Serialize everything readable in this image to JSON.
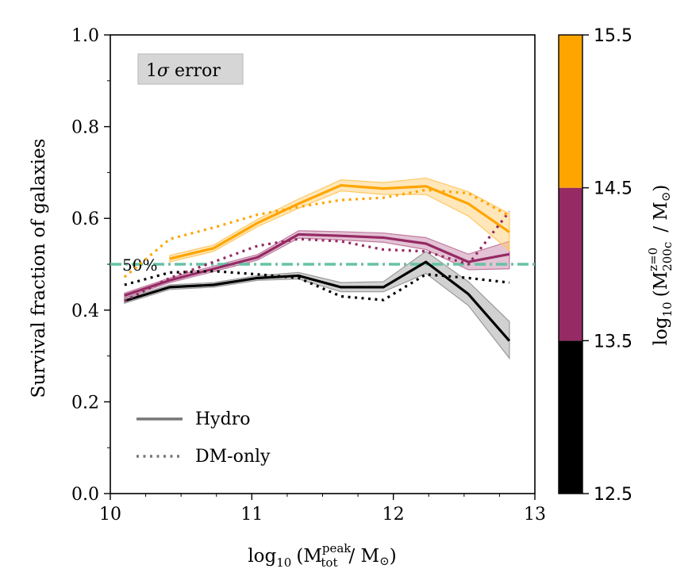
{
  "chart_data": {
    "type": "line",
    "title": "",
    "xlabel": "log10 (M_tot^peak / M_sun)",
    "ylabel": "Survival fraction of galaxies",
    "xlabel_parts": {
      "lead": "log",
      "sub": "10",
      "open": "(M",
      "sup": "peak",
      "subscript": "tot",
      "close": "/ M",
      "sun": "⊙",
      "end": ")"
    },
    "xlim": [
      10,
      13
    ],
    "ylim": [
      0.0,
      1.0
    ],
    "xticks": [
      "10",
      "11",
      "12",
      "13"
    ],
    "yticks": [
      "0.0",
      "0.2",
      "0.4",
      "0.6",
      "0.8",
      "1.0"
    ],
    "grid": false,
    "reference_line": {
      "y": 0.5,
      "label": "50%",
      "color": "#66c2a5",
      "style": "dash-dot"
    },
    "error_band_label": "1σ error",
    "error_band_sigma": "σ",
    "error_band_prefix": "1",
    "error_band_suffix": " error",
    "legend": [
      {
        "label": "Hydro",
        "style": "solid"
      },
      {
        "label": "DM-only",
        "style": "dotted"
      }
    ],
    "colorbar": {
      "label": "log10 (M_200c^{z=0} / M_sun)",
      "label_parts": {
        "lead": "log",
        "sub": "10",
        "open": "(M",
        "sup": "z=0",
        "subscript": "200c",
        "close": "/ M",
        "sun": "⊙",
        "end": ")"
      },
      "ticks": [
        "12.5",
        "13.5",
        "14.5",
        "15.5"
      ],
      "bins": [
        {
          "range": [
            12.5,
            13.5
          ],
          "color": "#000000"
        },
        {
          "range": [
            13.5,
            14.5
          ],
          "color": "#952a64"
        },
        {
          "range": [
            14.5,
            15.5
          ],
          "color": "#ffa500"
        }
      ]
    },
    "series": [
      {
        "name": "Hydro 12.5-13.5",
        "style": "solid",
        "color": "#000000",
        "band_color": "#999999",
        "x": [
          10.1,
          10.42,
          10.73,
          11.04,
          11.33,
          11.63,
          11.93,
          12.23,
          12.53,
          12.82
        ],
        "y": [
          0.42,
          0.45,
          0.455,
          0.47,
          0.475,
          0.45,
          0.45,
          0.505,
          0.435,
          0.333
        ],
        "lo": [
          0.415,
          0.445,
          0.45,
          0.465,
          0.468,
          0.44,
          0.44,
          0.48,
          0.41,
          0.295
        ],
        "hi": [
          0.425,
          0.455,
          0.46,
          0.475,
          0.482,
          0.46,
          0.462,
          0.528,
          0.462,
          0.375
        ]
      },
      {
        "name": "Hydro 13.5-14.5",
        "style": "solid",
        "color": "#952a64",
        "band_color": "#c07aa0",
        "x": [
          10.1,
          10.42,
          10.73,
          11.04,
          11.33,
          11.63,
          11.93,
          12.23,
          12.53,
          12.82
        ],
        "y": [
          0.432,
          0.465,
          0.49,
          0.515,
          0.565,
          0.562,
          0.558,
          0.545,
          0.505,
          0.522
        ],
        "lo": [
          0.427,
          0.46,
          0.484,
          0.509,
          0.557,
          0.553,
          0.548,
          0.532,
          0.488,
          0.49
        ],
        "hi": [
          0.437,
          0.47,
          0.496,
          0.521,
          0.573,
          0.571,
          0.568,
          0.558,
          0.522,
          0.55
        ]
      },
      {
        "name": "Hydro 14.5-15.5",
        "style": "solid",
        "color": "#ffa500",
        "band_color": "#ffc966",
        "x": [
          10.42,
          10.73,
          11.04,
          11.33,
          11.63,
          11.93,
          12.23,
          12.53,
          12.82
        ],
        "y": [
          0.512,
          0.535,
          0.59,
          0.632,
          0.672,
          0.665,
          0.67,
          0.632,
          0.57
        ],
        "lo": [
          0.505,
          0.528,
          0.582,
          0.622,
          0.66,
          0.652,
          0.652,
          0.605,
          0.53
        ],
        "hi": [
          0.519,
          0.542,
          0.598,
          0.642,
          0.684,
          0.678,
          0.688,
          0.658,
          0.61
        ]
      },
      {
        "name": "DM-only 12.5-13.5",
        "style": "dotted",
        "color": "#000000",
        "x": [
          10.1,
          10.42,
          10.73,
          11.04,
          11.33,
          11.63,
          11.93,
          12.23,
          12.53,
          12.82
        ],
        "y": [
          0.455,
          0.482,
          0.485,
          0.478,
          0.47,
          0.43,
          0.422,
          0.478,
          0.47,
          0.46
        ]
      },
      {
        "name": "DM-only 13.5-14.5",
        "style": "dotted",
        "color": "#952a64",
        "x": [
          10.1,
          10.42,
          10.73,
          11.04,
          11.33,
          11.63,
          11.93,
          12.23,
          12.53,
          12.82
        ],
        "y": [
          0.42,
          0.47,
          0.505,
          0.54,
          0.555,
          0.55,
          0.532,
          0.528,
          0.5,
          0.615
        ]
      },
      {
        "name": "DM-only 14.5-15.5",
        "style": "dotted",
        "color": "#ffa500",
        "x": [
          10.1,
          10.42,
          10.73,
          11.04,
          11.33,
          11.63,
          11.93,
          12.23,
          12.53,
          12.82
        ],
        "y": [
          0.472,
          0.555,
          0.58,
          0.608,
          0.625,
          0.64,
          0.645,
          0.662,
          0.655,
          0.605
        ]
      }
    ]
  }
}
